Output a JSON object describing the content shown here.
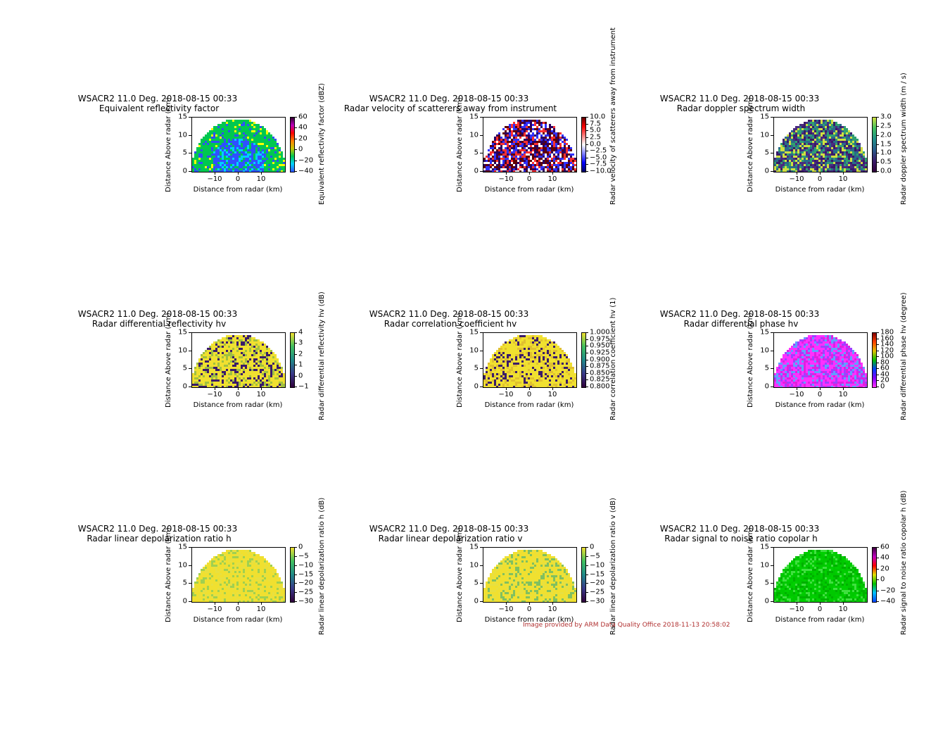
{
  "credit": "Image provided by ARM Data Quality Office 2018-11-13 20:58:02",
  "chart_data": [
    {
      "type": "heatmap",
      "title": "WSACR2 11.0 Deg. 2018-08-15 00:33",
      "subtitle": "Equivalent reflectivity factor",
      "xlabel": "Distance from radar (km)",
      "ylabel": "Distance Above radar (km)",
      "colorbar_label": "Equivalent reflectivity factor (dBZ)",
      "xticks": [
        "−10",
        "0",
        "10"
      ],
      "xtick_values": [
        -10,
        0,
        10
      ],
      "yticks": [
        "0",
        "5",
        "10",
        "15"
      ],
      "xlim": [
        -20,
        20
      ],
      "ylim": [
        0,
        15
      ],
      "cticks": [
        "60",
        "40",
        "20",
        "0",
        "−20",
        "−40"
      ],
      "colors": [
        "#3050ff",
        "#00d0ff",
        "#00c850",
        "#ffff00",
        "#ff0000",
        "#800080"
      ]
    },
    {
      "type": "heatmap",
      "title": "WSACR2 11.0 Deg. 2018-08-15 00:33",
      "subtitle": "Radar velocity of scatterers away from instrument",
      "xlabel": "Distance from radar (km)",
      "ylabel": "Distance Above radar (km)",
      "colorbar_label": "Radar velocity of scatterers away from instrument",
      "xticks": [
        "−10",
        "0",
        "10"
      ],
      "xtick_values": [
        -10,
        0,
        10
      ],
      "yticks": [
        "0",
        "5",
        "10",
        "15"
      ],
      "xlim": [
        -20,
        20
      ],
      "ylim": [
        0,
        15
      ],
      "cticks": [
        "10.0",
        "7.5",
        "5.0",
        "2.5",
        "0.0",
        "−2.5",
        "−5.0",
        "−7.5",
        "−10.0"
      ],
      "colors": [
        "#2a0060",
        "#ff3030",
        "#ffffff",
        "#3030ff",
        "#600000"
      ]
    },
    {
      "type": "heatmap",
      "title": "WSACR2 11.0 Deg. 2018-08-15 00:33",
      "subtitle": "Radar doppler spectrum width",
      "xlabel": "Distance from radar (km)",
      "ylabel": "Distance Above radar (km)",
      "colorbar_label": "Radar doppler spectrum width (m / s)",
      "xticks": [
        "−10",
        "0",
        "10"
      ],
      "xtick_values": [
        -10,
        0,
        10
      ],
      "yticks": [
        "0",
        "5",
        "10",
        "15"
      ],
      "xlim": [
        -20,
        20
      ],
      "ylim": [
        0,
        15
      ],
      "cticks": [
        "3.0",
        "2.5",
        "2.0",
        "1.5",
        "1.0",
        "0.5",
        "0.0"
      ],
      "colors": [
        "#3a1b6a",
        "#4a2a80",
        "#2a6a8a",
        "#30a070",
        "#d0e040"
      ]
    },
    {
      "type": "heatmap",
      "title": "WSACR2 11.0 Deg. 2018-08-15 00:33",
      "subtitle": "Radar differential reflectivity hv",
      "xlabel": "Distance from radar (km)",
      "ylabel": "Distance Above radar (km)",
      "colorbar_label": "Radar differential reflectivity hv (dB)",
      "xticks": [
        "−10",
        "0",
        "10"
      ],
      "xtick_values": [
        -10,
        0,
        10
      ],
      "yticks": [
        "0",
        "5",
        "10",
        "15"
      ],
      "xlim": [
        -20,
        20
      ],
      "ylim": [
        0,
        15
      ],
      "cticks": [
        "4",
        "3",
        "2",
        "1",
        "0",
        "−1"
      ],
      "colors": [
        "#f0e030",
        "#3a1b6a",
        "#f0e030",
        "#a0c040",
        "#f0e030"
      ]
    },
    {
      "type": "heatmap",
      "title": "WSACR2 11.0 Deg. 2018-08-15 00:33",
      "subtitle": "Radar correlation coefficient hv",
      "xlabel": "Distance from radar (km)",
      "ylabel": "Distance Above radar (km)",
      "colorbar_label": "Radar correlation coefficient hv (1)",
      "xticks": [
        "−10",
        "0",
        "10"
      ],
      "xtick_values": [
        -10,
        0,
        10
      ],
      "yticks": [
        "0",
        "5",
        "10",
        "15"
      ],
      "xlim": [
        -20,
        20
      ],
      "ylim": [
        0,
        15
      ],
      "cticks": [
        "1.000",
        "0.975",
        "0.950",
        "0.925",
        "0.900",
        "0.875",
        "0.850",
        "0.825",
        "0.800"
      ],
      "colors": [
        "#f0e030",
        "#3a1b6a",
        "#f0e030",
        "#e0c030",
        "#f0e030"
      ]
    },
    {
      "type": "heatmap",
      "title": "WSACR2 11.0 Deg. 2018-08-15 00:33",
      "subtitle": "Radar differential phase hv",
      "xlabel": "Distance from radar (km)",
      "ylabel": "Distance Above radar (km)",
      "colorbar_label": "Radar differential phase hv (degree)",
      "xticks": [
        "−10",
        "0",
        "10"
      ],
      "xtick_values": [
        -10,
        0,
        10
      ],
      "yticks": [
        "0",
        "5",
        "10",
        "15"
      ],
      "xlim": [
        -20,
        20
      ],
      "ylim": [
        0,
        15
      ],
      "cticks": [
        "180",
        "160",
        "140",
        "120",
        "100",
        "80",
        "60",
        "40",
        "20",
        "0"
      ],
      "colors": [
        "#ff30ff",
        "#e020e0",
        "#a040ff",
        "#60a0ff",
        "#ff30ff"
      ]
    },
    {
      "type": "heatmap",
      "title": "WSACR2 11.0 Deg. 2018-08-15 00:33",
      "subtitle": "Radar linear depolarization ratio h",
      "xlabel": "Distance from radar (km)",
      "ylabel": "Distance Above radar (km)",
      "colorbar_label": "Radar linear depolarization ratio h (dB)",
      "xticks": [
        "−10",
        "0",
        "10"
      ],
      "xtick_values": [
        -10,
        0,
        10
      ],
      "yticks": [
        "0",
        "5",
        "10",
        "15"
      ],
      "xlim": [
        -20,
        20
      ],
      "ylim": [
        0,
        15
      ],
      "cticks": [
        "0",
        "−5",
        "−10",
        "−15",
        "−20",
        "−25",
        "−30"
      ],
      "colors": [
        "#f0e030",
        "#f0e030",
        "#e8e040",
        "#a0d050",
        "#f0e030"
      ]
    },
    {
      "type": "heatmap",
      "title": "WSACR2 11.0 Deg. 2018-08-15 00:33",
      "subtitle": "Radar linear depolarization ratio v",
      "xlabel": "Distance from radar (km)",
      "ylabel": "Distance Above radar (km)",
      "colorbar_label": "Radar linear depolarization ratio v (dB)",
      "xticks": [
        "−10",
        "0",
        "10"
      ],
      "xtick_values": [
        -10,
        0,
        10
      ],
      "yticks": [
        "0",
        "5",
        "10",
        "15"
      ],
      "xlim": [
        -20,
        20
      ],
      "ylim": [
        0,
        15
      ],
      "cticks": [
        "0",
        "−5",
        "−10",
        "−15",
        "−20",
        "−25",
        "−30"
      ],
      "colors": [
        "#f0e030",
        "#f0e030",
        "#e8e040",
        "#80c060",
        "#f0e030"
      ]
    },
    {
      "type": "heatmap",
      "title": "WSACR2 11.0 Deg. 2018-08-15 00:33",
      "subtitle": "Radar signal to noise ratio copolar h",
      "xlabel": "Distance from radar (km)",
      "ylabel": "Distance Above radar (km)",
      "colorbar_label": "Radar signal to noise ratio copolar h (dB)",
      "xticks": [
        "−10",
        "0",
        "10"
      ],
      "xtick_values": [
        -10,
        0,
        10
      ],
      "yticks": [
        "0",
        "5",
        "10",
        "15"
      ],
      "xlim": [
        -20,
        20
      ],
      "ylim": [
        0,
        15
      ],
      "cticks": [
        "60",
        "40",
        "20",
        "0",
        "−20",
        "−40"
      ],
      "colors": [
        "#00c800",
        "#00d000",
        "#00b000",
        "#40e040",
        "#00c800"
      ]
    }
  ],
  "colorbar_gradients": [
    [
      "#3050ff",
      "#00d0ff",
      "#00c850",
      "#c8c800",
      "#ff8000",
      "#ff0000",
      "#c000c0",
      "#300030"
    ],
    [
      "#000060",
      "#0000ff",
      "#8080ff",
      "#ffffff",
      "#ff8080",
      "#ff0000",
      "#600000"
    ],
    [
      "#30003a",
      "#3a1b6a",
      "#2a5a8a",
      "#20908a",
      "#40c060",
      "#d0e040"
    ],
    [
      "#30003a",
      "#3a3a8a",
      "#208a8a",
      "#40c060",
      "#f0e030"
    ],
    [
      "#30003a",
      "#3a3a8a",
      "#208a8a",
      "#40c060",
      "#f0e030"
    ],
    [
      "#ff30ff",
      "#8000ff",
      "#0040ff",
      "#00c000",
      "#e0c000",
      "#ff4000",
      "#800000"
    ],
    [
      "#30003a",
      "#3a3a8a",
      "#208a8a",
      "#40c060",
      "#f0e030"
    ],
    [
      "#30003a",
      "#3a3a8a",
      "#208a8a",
      "#40c060",
      "#f0e030"
    ],
    [
      "#0040ff",
      "#00c0ff",
      "#00c000",
      "#e0e000",
      "#ff0000",
      "#c000c0",
      "#400040"
    ]
  ]
}
